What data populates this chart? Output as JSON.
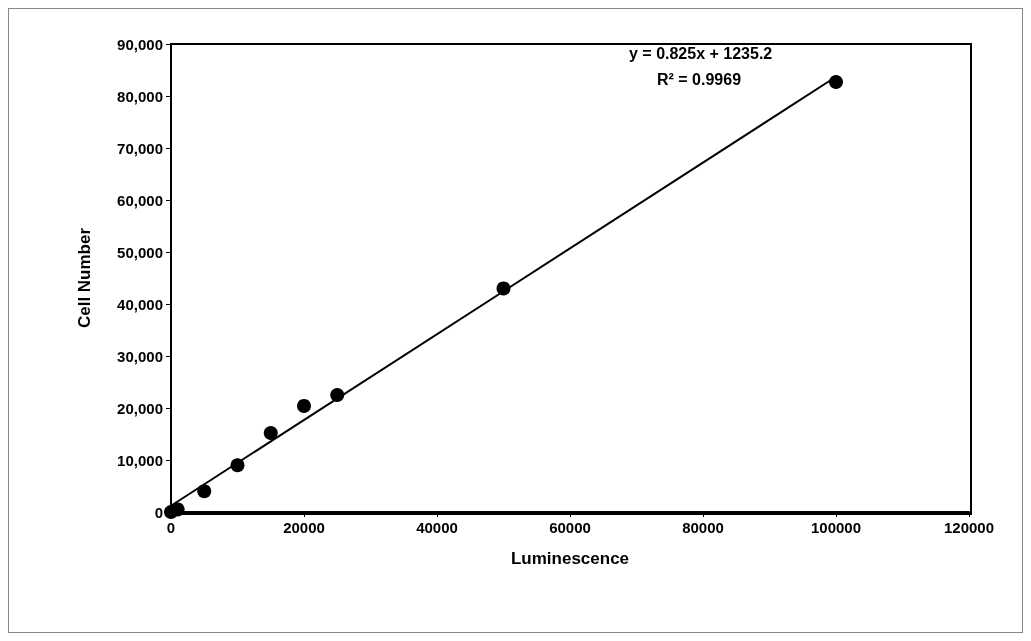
{
  "chart_data": {
    "type": "scatter",
    "xlabel": "Luminescence",
    "ylabel": "Cell Number",
    "xlim": [
      0,
      120000
    ],
    "xticks": [
      0,
      20000,
      40000,
      60000,
      80000,
      100000,
      120000
    ],
    "ylim": [
      0,
      90000
    ],
    "yticks": [
      {
        "value": 0,
        "label": "0"
      },
      {
        "value": 10000,
        "label": "10,000"
      },
      {
        "value": 20000,
        "label": "20,000"
      },
      {
        "value": 30000,
        "label": "30,000"
      },
      {
        "value": 40000,
        "label": "40,000"
      },
      {
        "value": 50000,
        "label": "50,000"
      },
      {
        "value": 60000,
        "label": "60,000"
      },
      {
        "value": 70000,
        "label": "70,000"
      },
      {
        "value": 80000,
        "label": "80,000"
      },
      {
        "value": 90000,
        "label": "90,000"
      }
    ],
    "grid": false,
    "marker": "circle",
    "series": [
      {
        "type": "scatter",
        "color": "#000000",
        "x": [
          0,
          1000,
          5000,
          10000,
          15000,
          20000,
          25000,
          50000,
          100000
        ],
        "values": [
          0,
          500,
          4000,
          9000,
          15200,
          20400,
          22500,
          43000,
          82700
        ]
      },
      {
        "type": "line",
        "color": "#000000",
        "marker": "none",
        "line_style": "solid",
        "x": [
          0,
          100000
        ],
        "values": [
          1200,
          83700
        ]
      }
    ],
    "annotations": [
      "y = 0.825x + 1235.2",
      "R² = 0.9969"
    ]
  }
}
